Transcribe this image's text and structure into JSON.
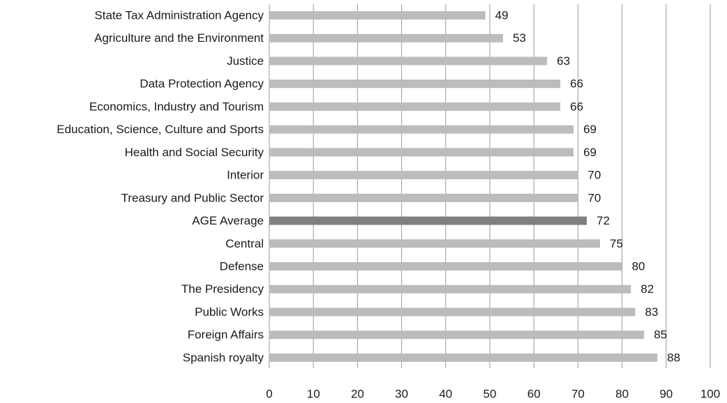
{
  "chart_data": {
    "type": "barh",
    "categories": [
      "State Tax Administration Agency",
      "Agriculture and the Environment",
      "Justice",
      "Data Protection Agency",
      "Economics, Industry and Tourism",
      "Education, Science, Culture and Sports",
      "Health and Social Security",
      "Interior",
      "Treasury and Public Sector",
      "AGE Average",
      "Central",
      "Defense",
      "The Presidency",
      "Public Works",
      "Foreign Affairs",
      "Spanish royalty"
    ],
    "values": [
      49,
      53,
      63,
      66,
      66,
      69,
      69,
      70,
      70,
      72,
      75,
      80,
      82,
      83,
      85,
      88
    ],
    "colors": [
      "#bcbcbc",
      "#bcbcbc",
      "#bcbcbc",
      "#bcbcbc",
      "#bcbcbc",
      "#bcbcbc",
      "#bcbcbc",
      "#bcbcbc",
      "#bcbcbc",
      "#808080",
      "#bcbcbc",
      "#bcbcbc",
      "#bcbcbc",
      "#bcbcbc",
      "#bcbcbc",
      "#bcbcbc"
    ],
    "xlim": [
      0,
      100
    ],
    "xticks": [
      0,
      10,
      20,
      30,
      40,
      50,
      60,
      70,
      80,
      90,
      100
    ],
    "grid": true
  }
}
